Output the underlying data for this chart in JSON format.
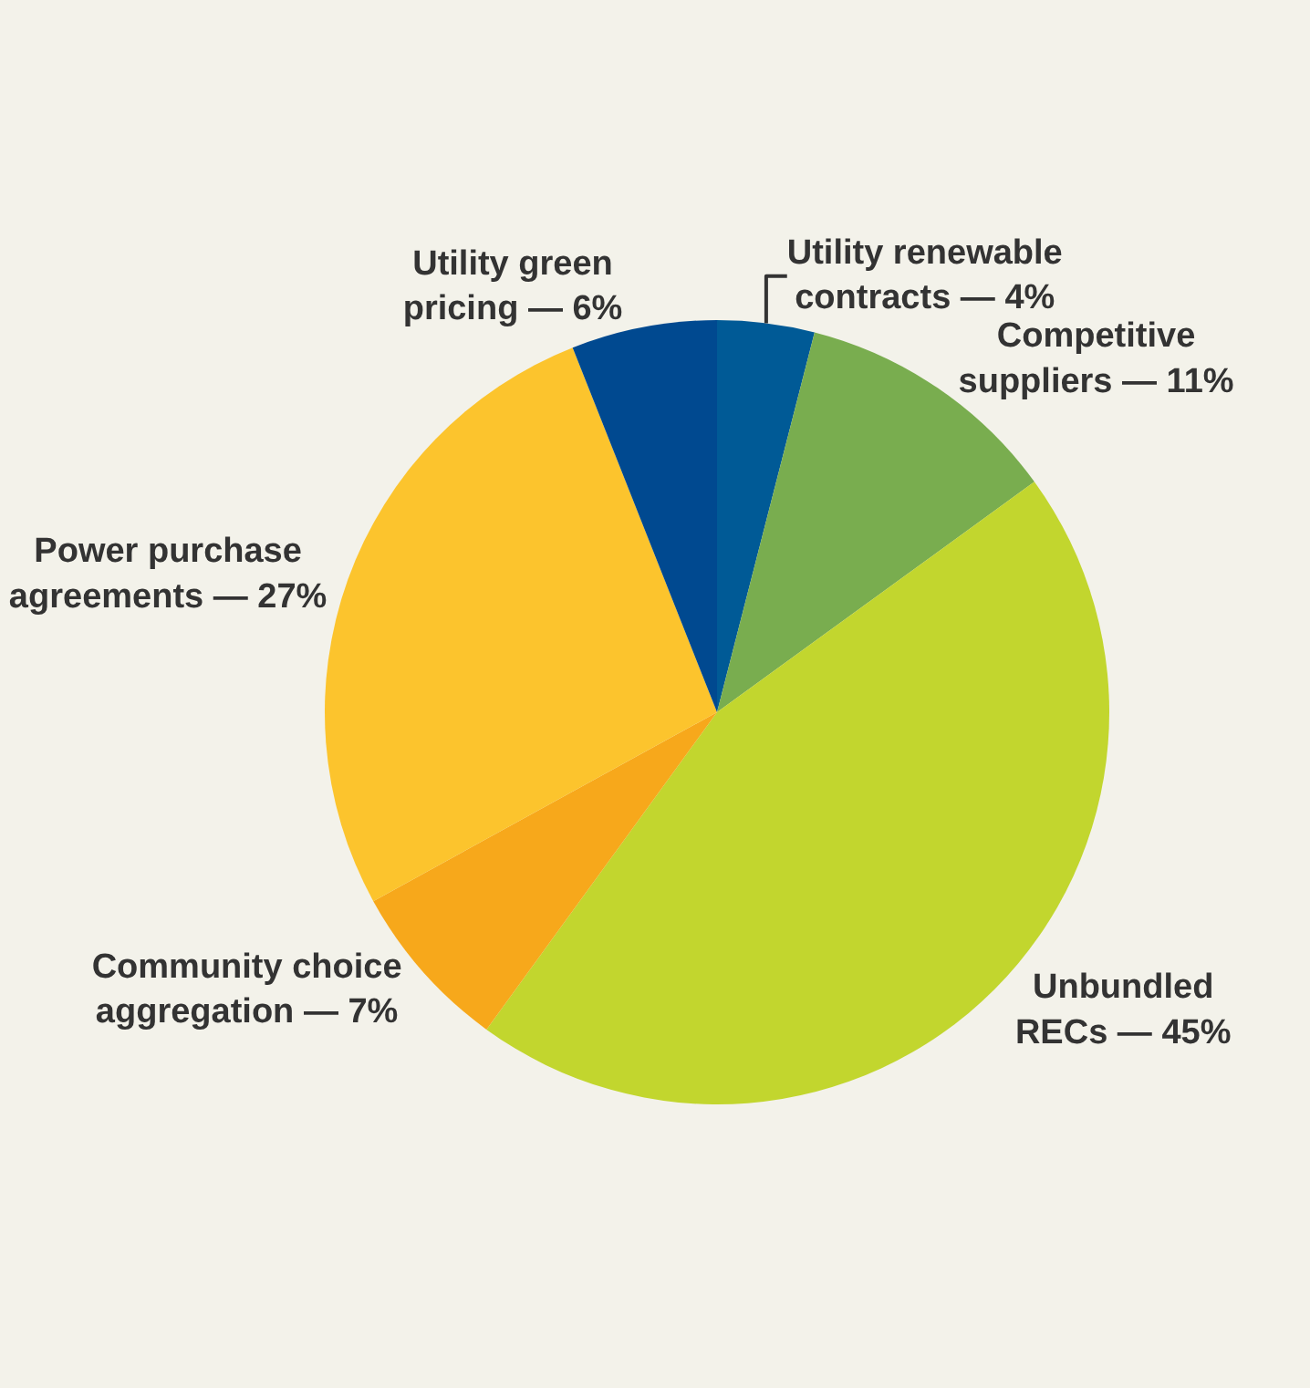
{
  "chart_data": {
    "type": "pie",
    "categories": [
      "Utility renewable contracts",
      "Competitive suppliers",
      "Unbundled RECs",
      "Community choice aggregation",
      "Power purchase agreements",
      "Utility green pricing"
    ],
    "values": [
      4,
      11,
      45,
      7,
      27,
      6
    ],
    "value_labels": [
      "— 4%",
      "— 11%",
      "— 45%",
      "— 7%",
      "— 27%",
      "— 6%"
    ],
    "colors": [
      "#005a96",
      "#79ad4f",
      "#c2d62e",
      "#f7a81b",
      "#fcc42d",
      "#004990"
    ],
    "legend": false
  }
}
